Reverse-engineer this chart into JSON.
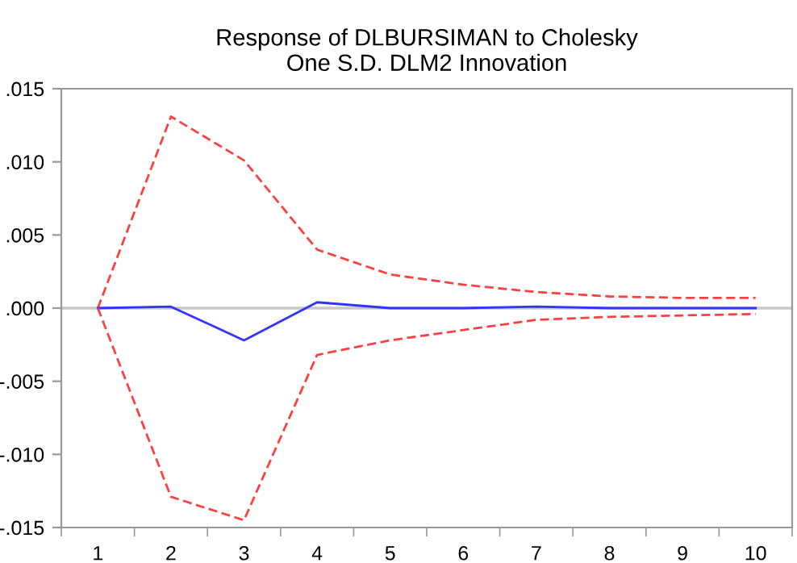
{
  "chart_data": {
    "type": "line",
    "title": "Response of DLBURSIMAN to Cholesky\nOne S.D. DLM2 Innovation",
    "categories": [
      "1",
      "2",
      "3",
      "4",
      "5",
      "6",
      "7",
      "8",
      "9",
      "10"
    ],
    "series": [
      {
        "color": "#ff4040",
        "line_style": "dashed",
        "values": [
          0,
          0.0131,
          0.0101,
          0.004,
          0.0023,
          0.0016,
          0.0011,
          0.0008,
          0.0007,
          0.0007
        ]
      },
      {
        "color": "#3333ff",
        "line_style": "solid",
        "values": [
          0,
          0.0001,
          -0.0022,
          0.0004,
          0,
          0,
          0.0001,
          0,
          0,
          0
        ]
      },
      {
        "color": "#ff4040",
        "line_style": "dashed",
        "values": [
          0,
          -0.0129,
          -0.0145,
          -0.0032,
          -0.0022,
          -0.0015,
          -0.0008,
          -0.0006,
          -0.0005,
          -0.0004
        ]
      }
    ],
    "ylim": [
      -0.015,
      0.015
    ],
    "yticks": [
      {
        "value": -0.015,
        "label": "-.015"
      },
      {
        "value": -0.01,
        "label": "-.010"
      },
      {
        "value": -0.005,
        "label": "-.005"
      },
      {
        "value": 0,
        "label": ".000"
      },
      {
        "value": 0.005,
        "label": ".005"
      },
      {
        "value": 0.01,
        "label": ".010"
      },
      {
        "value": 0.015,
        "label": ".015"
      }
    ],
    "ref_lines": [
      {
        "axis": "y",
        "value": 0,
        "color": "#c8c8c8"
      }
    ],
    "grid": false,
    "legend": false,
    "marker": "none"
  }
}
